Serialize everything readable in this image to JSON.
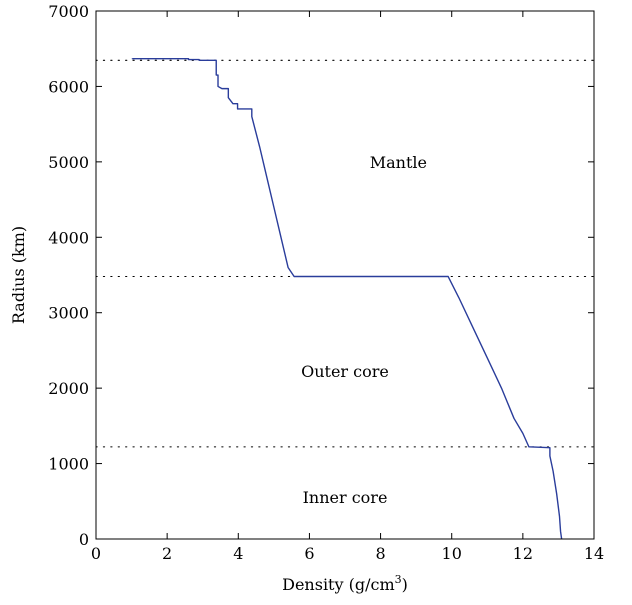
{
  "chart_data": {
    "type": "line",
    "title": "",
    "xlabel": "Density (g/cm",
    "xlabel_sup": "3",
    "xlabel_suffix": ")",
    "ylabel": "Radius (km)",
    "xlim": [
      0,
      14
    ],
    "ylim": [
      0,
      7000
    ],
    "xticks": [
      0,
      2,
      4,
      6,
      8,
      10,
      12,
      14
    ],
    "yticks": [
      0,
      1000,
      2000,
      3000,
      4000,
      5000,
      6000,
      7000
    ],
    "grid": false,
    "line_color": "#2a3d9b",
    "boundary_lines": [
      {
        "y": 6346,
        "style": "dotted"
      },
      {
        "y": 3480,
        "style": "dotted"
      },
      {
        "y": 1221.5,
        "style": "dotted"
      }
    ],
    "region_labels": [
      {
        "text": "Mantle",
        "x": 8.5,
        "y": 5000
      },
      {
        "text": "Outer core",
        "x": 7.0,
        "y": 2230
      },
      {
        "text": "Inner core",
        "x": 7.0,
        "y": 560
      }
    ],
    "series": [
      {
        "x": [
          1.02,
          1.02,
          2.6,
          2.6,
          2.9,
          2.9,
          3.38,
          3.38,
          3.43,
          3.43,
          3.54,
          3.72,
          3.72,
          3.85,
          3.92,
          3.98,
          3.98,
          4.38,
          4.38,
          4.6,
          4.8,
          5.0,
          5.2,
          5.4,
          5.57,
          5.57,
          9.9,
          9.9,
          10.2,
          10.6,
          11.0,
          11.4,
          11.75,
          12.0,
          12.17,
          12.17,
          12.76,
          12.76,
          12.85,
          12.95,
          13.03,
          13.06,
          13.09
        ],
        "y": [
          6371,
          6368,
          6368,
          6356,
          6356,
          6346,
          6346,
          6151,
          6151,
          6000,
          5971,
          5971,
          5850,
          5771,
          5771,
          5771,
          5701,
          5701,
          5600,
          5200,
          4800,
          4400,
          4000,
          3600,
          3480,
          3480,
          3480,
          3480,
          3200,
          2800,
          2400,
          2000,
          1600,
          1400,
          1221.5,
          1221.5,
          1210,
          1100,
          900,
          600,
          300,
          100,
          0
        ]
      }
    ]
  }
}
